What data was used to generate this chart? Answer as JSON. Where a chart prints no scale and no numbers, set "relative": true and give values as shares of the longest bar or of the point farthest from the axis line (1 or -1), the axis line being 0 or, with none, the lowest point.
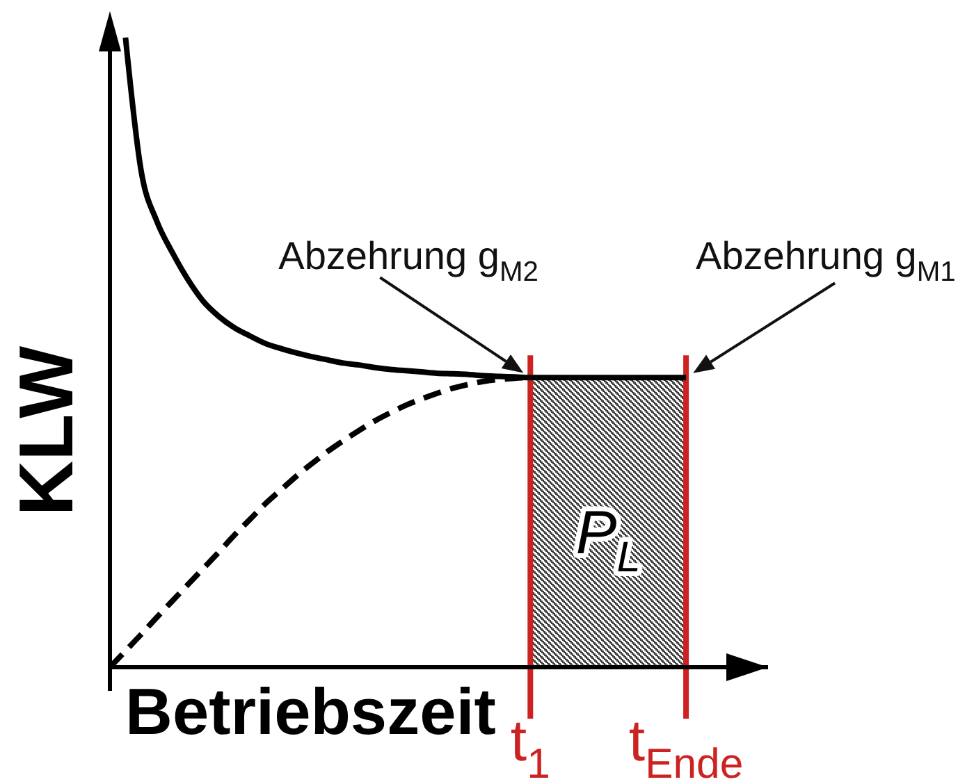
{
  "chart_data": {
    "type": "line",
    "relative": true,
    "xlabel": "Betriebszeit",
    "ylabel": "KLW",
    "categories": [
      null,
      null,
      null,
      null,
      null,
      null,
      null,
      null,
      null,
      null,
      null,
      null,
      null,
      null,
      null,
      null,
      null,
      null,
      null,
      null,
      null,
      null,
      null,
      null,
      null,
      null,
      null,
      "t$_{1}$",
      null,
      null,
      null,
      null,
      null,
      null,
      null,
      null,
      null,
      "t$_{Ende}$",
      null,
      null,
      null,
      null,
      null
    ],
    "series": [
      {
        "color": "#000000",
        "line_style": "solid",
        "values": [
          null,
          1,
          0.789,
          0.709,
          0.659,
          0.616,
          0.581,
          0.557,
          0.539,
          0.526,
          0.514,
          0.506,
          0.499,
          0.493,
          0.488,
          0.483,
          0.48,
          0.476,
          0.473,
          0.471,
          0.469,
          0.467,
          0.466,
          0.465,
          0.463,
          0.462,
          0.461,
          0.46,
          0.46,
          0.46,
          0.46,
          0.46,
          0.46,
          0.46,
          0.46,
          0.46,
          0.46,
          0.46,
          null,
          null,
          null,
          null,
          null
        ]
      },
      {
        "color": "#000000",
        "line_style": "dashed",
        "values": [
          0,
          0.026,
          0.052,
          0.079,
          0.105,
          0.131,
          0.157,
          0.183,
          0.21,
          0.235,
          0.26,
          0.282,
          0.304,
          0.324,
          0.343,
          0.36,
          0.376,
          0.391,
          0.404,
          0.416,
          0.426,
          0.435,
          0.443,
          0.449,
          0.454,
          0.457,
          0.459,
          0.46,
          null,
          null,
          null,
          null,
          null,
          null,
          null,
          null,
          null,
          null,
          null,
          null,
          null,
          null,
          null
        ]
      },
      {
        "type": "area",
        "name": "P$_{L}$",
        "color": "#404040",
        "values": [
          null,
          null,
          null,
          null,
          null,
          null,
          null,
          null,
          null,
          null,
          null,
          null,
          null,
          null,
          null,
          null,
          null,
          null,
          null,
          null,
          null,
          null,
          null,
          null,
          null,
          null,
          null,
          0.46,
          0.46,
          0.46,
          0.46,
          0.46,
          0.46,
          0.46,
          0.46,
          0.46,
          0.46,
          0.46,
          null,
          null,
          null,
          null,
          null
        ]
      }
    ],
    "ref_lines": [
      {
        "axis": "x",
        "value": "t$_{1}$",
        "color": "#cc2222"
      },
      {
        "axis": "x",
        "value": "t$_{Ende}$",
        "color": "#cc2222"
      }
    ],
    "annotations": [
      {
        "text": "Abzehrung g$_{M2}$",
        "x": "t$_{1}$",
        "y": 0.46
      },
      {
        "text": "Abzehrung g$_{M1}$",
        "x": "t$_{Ende}$",
        "y": 0.46
      }
    ]
  }
}
